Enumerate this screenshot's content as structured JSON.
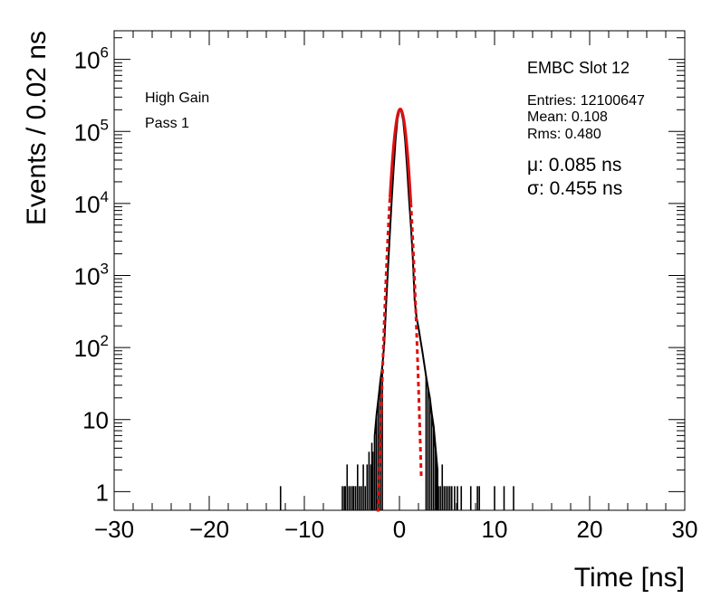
{
  "chart_data": {
    "type": "histogram",
    "xlabel": "Time [ns]",
    "ylabel": "Events / 0.02 ns",
    "xlim": [
      -30,
      30
    ],
    "ylim": [
      0.55,
      2500000
    ],
    "yscale": "log",
    "grid": false,
    "x_ticks": [
      {
        "value": -30,
        "label": "−30"
      },
      {
        "value": -20,
        "label": "−20"
      },
      {
        "value": -10,
        "label": "−10"
      },
      {
        "value": 0,
        "label": "0"
      },
      {
        "value": 10,
        "label": "10"
      },
      {
        "value": 20,
        "label": "20"
      },
      {
        "value": 30,
        "label": "30"
      }
    ],
    "y_ticks": [
      {
        "value": 1,
        "base": "1",
        "exp": ""
      },
      {
        "value": 10,
        "base": "10",
        "exp": ""
      },
      {
        "value": 100,
        "base": "10",
        "exp": "2"
      },
      {
        "value": 1000,
        "base": "10",
        "exp": "3"
      },
      {
        "value": 10000,
        "base": "10",
        "exp": "4"
      },
      {
        "value": 100000,
        "base": "10",
        "exp": "5"
      },
      {
        "value": 1000000,
        "base": "10",
        "exp": "6"
      }
    ],
    "annotations": {
      "left": [
        "High Gain",
        "Pass 1"
      ],
      "slot": "EMBC Slot 12",
      "stats": [
        "Entries: 12100647",
        "Mean: 0.108",
        "Rms: 0.480"
      ],
      "fit": [
        "μ: 0.085 ns",
        "σ: 0.455 ns"
      ]
    },
    "histogram": {
      "color": "#000000",
      "core": [
        {
          "x": -2.6,
          "y": 6
        },
        {
          "x": -2.4,
          "y": 12
        },
        {
          "x": -2.2,
          "y": 20
        },
        {
          "x": -2.0,
          "y": 35
        },
        {
          "x": -1.8,
          "y": 55
        },
        {
          "x": -1.6,
          "y": 110
        },
        {
          "x": -1.4,
          "y": 400
        },
        {
          "x": -1.2,
          "y": 1300
        },
        {
          "x": -1.0,
          "y": 4000
        },
        {
          "x": -0.8,
          "y": 12000
        },
        {
          "x": -0.6,
          "y": 32000
        },
        {
          "x": -0.4,
          "y": 80000
        },
        {
          "x": -0.2,
          "y": 150000
        },
        {
          "x": 0.0,
          "y": 195000
        },
        {
          "x": 0.1,
          "y": 200000
        },
        {
          "x": 0.2,
          "y": 190000
        },
        {
          "x": 0.4,
          "y": 140000
        },
        {
          "x": 0.6,
          "y": 75000
        },
        {
          "x": 0.8,
          "y": 32000
        },
        {
          "x": 1.0,
          "y": 12000
        },
        {
          "x": 1.2,
          "y": 5000
        },
        {
          "x": 1.4,
          "y": 1800
        },
        {
          "x": 1.6,
          "y": 450
        },
        {
          "x": 1.8,
          "y": 260
        },
        {
          "x": 2.0,
          "y": 190
        },
        {
          "x": 2.2,
          "y": 130
        },
        {
          "x": 2.4,
          "y": 90
        },
        {
          "x": 2.6,
          "y": 60
        },
        {
          "x": 2.8,
          "y": 40
        },
        {
          "x": 3.0,
          "y": 28
        },
        {
          "x": 3.2,
          "y": 20
        },
        {
          "x": 3.4,
          "y": 12
        },
        {
          "x": 3.6,
          "y": 8
        },
        {
          "x": 3.8,
          "y": 4
        },
        {
          "x": 4.0,
          "y": 2
        }
      ],
      "tail_spikes": [
        {
          "x": -12.5,
          "y": 1
        },
        {
          "x": -6.0,
          "y": 1
        },
        {
          "x": -5.8,
          "y": 1
        },
        {
          "x": -5.7,
          "y": 1
        },
        {
          "x": -5.5,
          "y": 2
        },
        {
          "x": -5.3,
          "y": 1
        },
        {
          "x": -5.1,
          "y": 1
        },
        {
          "x": -4.9,
          "y": 1
        },
        {
          "x": -4.8,
          "y": 1
        },
        {
          "x": -4.6,
          "y": 1
        },
        {
          "x": -4.4,
          "y": 2
        },
        {
          "x": -4.2,
          "y": 1
        },
        {
          "x": -4.0,
          "y": 1
        },
        {
          "x": -3.8,
          "y": 2
        },
        {
          "x": -3.6,
          "y": 1
        },
        {
          "x": -3.4,
          "y": 2
        },
        {
          "x": -3.2,
          "y": 3
        },
        {
          "x": -3.0,
          "y": 2
        },
        {
          "x": -2.9,
          "y": 4
        },
        {
          "x": -2.8,
          "y": 3
        },
        {
          "x": 3.9,
          "y": 2
        },
        {
          "x": 4.1,
          "y": 1
        },
        {
          "x": 4.3,
          "y": 1
        },
        {
          "x": 4.5,
          "y": 2
        },
        {
          "x": 4.7,
          "y": 1
        },
        {
          "x": 4.9,
          "y": 1
        },
        {
          "x": 5.1,
          "y": 1
        },
        {
          "x": 5.3,
          "y": 1
        },
        {
          "x": 5.5,
          "y": 1
        },
        {
          "x": 5.8,
          "y": 1
        },
        {
          "x": 6.1,
          "y": 1
        },
        {
          "x": 6.5,
          "y": 1
        },
        {
          "x": 7.5,
          "y": 1
        },
        {
          "x": 8.2,
          "y": 1
        },
        {
          "x": 8.4,
          "y": 1
        },
        {
          "x": 10.0,
          "y": 1
        },
        {
          "x": 11.0,
          "y": 1
        },
        {
          "x": 12.0,
          "y": 1
        }
      ]
    },
    "fit": {
      "type": "gaussian",
      "color": "#e01010",
      "amplitude": 205000,
      "mean": 0.085,
      "sigma": 0.455,
      "solid_range": [
        -1.0,
        1.2
      ],
      "dashed_range": [
        -2.4,
        2.3
      ]
    }
  }
}
